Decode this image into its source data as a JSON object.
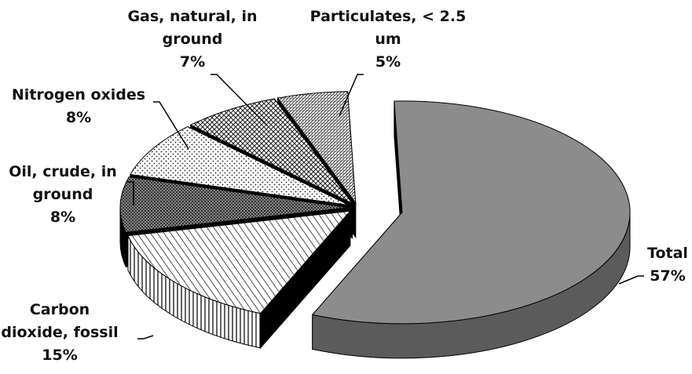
{
  "chart_data": {
    "type": "pie",
    "title": "",
    "exploded": true,
    "three_d": true,
    "slices": [
      {
        "label_lines": [
          "Total"
        ],
        "label": "Total",
        "value": 57,
        "value_label": "57%",
        "fill": "solid-gray"
      },
      {
        "label_lines": [
          "Carbon",
          "dioxide, fossil"
        ],
        "label": "Carbon dioxide, fossil",
        "value": 15,
        "value_label": "15%",
        "fill": "diagonal-hatch"
      },
      {
        "label_lines": [
          "Oil, crude, in",
          "ground"
        ],
        "label": "Oil, crude, in ground",
        "value": 8,
        "value_label": "8%",
        "fill": "dense-dots"
      },
      {
        "label_lines": [
          "Nitrogen oxides"
        ],
        "label": "Nitrogen oxides",
        "value": 8,
        "value_label": "8%",
        "fill": "sparse-dots"
      },
      {
        "label_lines": [
          "Gas, natural, in",
          "ground"
        ],
        "label": "Gas, natural, in ground",
        "value": 7,
        "value_label": "7%",
        "fill": "cross-hatch"
      },
      {
        "label_lines": [
          "Particulates, < 2.5",
          "um"
        ],
        "label": "Particulates, < 2.5 um",
        "value": 5,
        "value_label": "5%",
        "fill": "fine-texture"
      }
    ],
    "colors": {
      "total_top": "#8c8c8c",
      "total_side": "#5b5b5b",
      "side": "#000000",
      "hatch": "#222222"
    }
  }
}
